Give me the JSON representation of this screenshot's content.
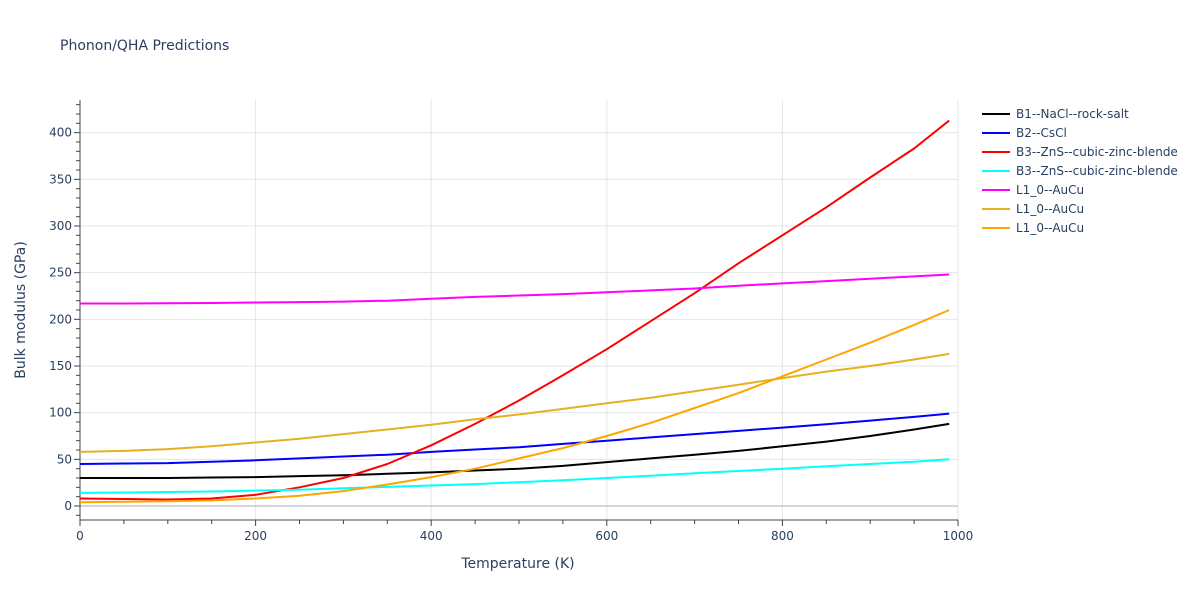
{
  "chart_data": {
    "type": "line",
    "title": "Phonon/QHA Predictions",
    "xlabel": "Temperature (K)",
    "ylabel": "Bulk modulus (GPa)",
    "xlim": [
      0,
      1000
    ],
    "ylim": [
      -15,
      435
    ],
    "x_ticks": [
      0,
      200,
      400,
      600,
      800,
      1000
    ],
    "y_ticks": [
      0,
      50,
      100,
      150,
      200,
      250,
      300,
      350,
      400
    ],
    "grid": true,
    "legend_position": "right",
    "series": [
      {
        "name": "B1--NaCl--rock-salt",
        "color": "#000000",
        "x": [
          0,
          50,
          100,
          150,
          200,
          250,
          300,
          350,
          400,
          450,
          500,
          550,
          600,
          650,
          700,
          750,
          800,
          850,
          900,
          950,
          990
        ],
        "y": [
          30,
          30,
          30,
          30.5,
          31,
          32,
          33,
          34.5,
          36,
          38,
          40,
          43,
          47,
          51,
          55,
          59,
          64,
          69,
          75,
          82,
          88
        ]
      },
      {
        "name": "B2--CsCl",
        "color": "#0000ff",
        "x": [
          0,
          50,
          100,
          150,
          200,
          250,
          300,
          350,
          400,
          450,
          500,
          550,
          600,
          650,
          700,
          750,
          800,
          850,
          900,
          950,
          990
        ],
        "y": [
          45,
          45.5,
          46,
          47.5,
          49,
          51,
          53,
          55,
          58,
          60.5,
          63,
          66.5,
          70,
          73.5,
          77,
          80.5,
          84,
          87.5,
          91.5,
          95.5,
          99
        ]
      },
      {
        "name": "B3--ZnS--cubic-zinc-blende",
        "color": "#ff0000",
        "x": [
          0,
          50,
          100,
          150,
          200,
          250,
          300,
          350,
          400,
          450,
          500,
          550,
          600,
          650,
          700,
          750,
          800,
          850,
          900,
          950,
          990
        ],
        "y": [
          8,
          7.5,
          7,
          8,
          12,
          20,
          30,
          45,
          65,
          88,
          113,
          140,
          168,
          198,
          228,
          260,
          290,
          320,
          352,
          383,
          413
        ]
      },
      {
        "name": "B3--ZnS--cubic-zinc-blende",
        "color": "#00ffff",
        "x": [
          0,
          50,
          100,
          150,
          200,
          250,
          300,
          350,
          400,
          450,
          500,
          550,
          600,
          650,
          700,
          750,
          800,
          850,
          900,
          950,
          990
        ],
        "y": [
          14,
          14.5,
          15,
          15.5,
          16.5,
          17.5,
          19,
          20.5,
          22,
          23.5,
          25.5,
          27.5,
          30,
          32.5,
          35,
          37.5,
          40,
          42.5,
          45,
          47.5,
          50
        ]
      },
      {
        "name": "L1_0--AuCu",
        "color": "#ff00ff",
        "x": [
          0,
          50,
          100,
          150,
          200,
          250,
          300,
          350,
          400,
          450,
          500,
          550,
          600,
          650,
          700,
          750,
          800,
          850,
          900,
          950,
          990
        ],
        "y": [
          217,
          217,
          217.2,
          217.5,
          218,
          218.5,
          219,
          220,
          222,
          224,
          225.5,
          227,
          229,
          231,
          233,
          236,
          238.5,
          241,
          243.5,
          246,
          248
        ]
      },
      {
        "name": "L1_0--AuCu",
        "color": "#e6b020",
        "x": [
          0,
          50,
          100,
          150,
          200,
          250,
          300,
          350,
          400,
          450,
          500,
          550,
          600,
          650,
          700,
          750,
          800,
          850,
          900,
          950,
          990
        ],
        "y": [
          58,
          59,
          61,
          64,
          68,
          72,
          77,
          82,
          87,
          93,
          98,
          104,
          110,
          116,
          123,
          130,
          137,
          144,
          150,
          157,
          163
        ]
      },
      {
        "name": "L1_0--AuCu",
        "color": "#ffa500",
        "x": [
          0,
          50,
          100,
          150,
          200,
          250,
          300,
          350,
          400,
          450,
          500,
          550,
          600,
          650,
          700,
          750,
          800,
          850,
          900,
          950,
          990
        ],
        "y": [
          4,
          4.5,
          5,
          6,
          8,
          11,
          16,
          23,
          31,
          40,
          51,
          62,
          75,
          89,
          105,
          121,
          139,
          157,
          175,
          194,
          210
        ]
      }
    ]
  }
}
